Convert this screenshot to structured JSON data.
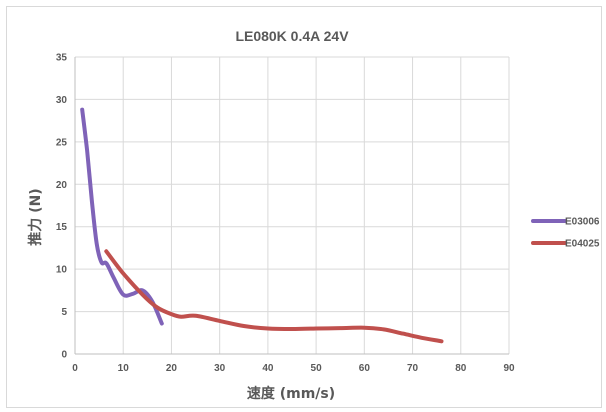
{
  "chart_data": {
    "type": "line",
    "title": "LE080K  0.4A  24V",
    "xlabel": "速度 (mm/s)",
    "ylabel": "推力 (N)",
    "xlim": [
      0,
      90
    ],
    "ylim": [
      0,
      35
    ],
    "xticks": [
      0,
      10,
      20,
      30,
      40,
      50,
      60,
      70,
      80,
      90
    ],
    "yticks": [
      0,
      5,
      10,
      15,
      20,
      25,
      30,
      35
    ],
    "grid": "both",
    "legend_position": "right",
    "series": [
      {
        "name": "E03006",
        "color": "#7f63b8",
        "x": [
          1.5,
          2.5,
          3.5,
          4.5,
          5.5,
          6.5,
          8,
          10,
          12,
          14,
          16,
          18
        ],
        "y": [
          28.8,
          24,
          18,
          13,
          10.8,
          10.7,
          9,
          7,
          7.1,
          7.5,
          6.2,
          3.6
        ]
      },
      {
        "name": "E04025",
        "color": "#c0504d",
        "x": [
          6.5,
          10,
          14,
          17,
          20,
          22,
          25,
          30,
          35,
          40,
          45,
          50,
          55,
          60,
          64,
          68,
          72,
          76
        ],
        "y": [
          12.1,
          9.5,
          7,
          5.5,
          4.7,
          4.4,
          4.5,
          3.9,
          3.3,
          3.0,
          2.95,
          3.0,
          3.05,
          3.1,
          2.9,
          2.4,
          1.9,
          1.5
        ]
      }
    ]
  }
}
